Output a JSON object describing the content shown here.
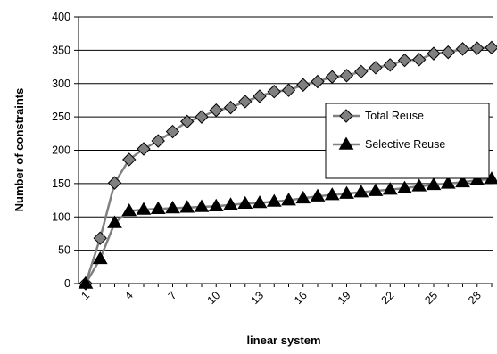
{
  "chart_data": {
    "type": "line",
    "title": "",
    "xlabel": "linear system",
    "ylabel": "Number of constraints",
    "x": [
      1,
      2,
      3,
      4,
      5,
      6,
      7,
      8,
      9,
      10,
      11,
      12,
      13,
      14,
      15,
      16,
      17,
      18,
      19,
      20,
      21,
      22,
      23,
      24,
      25,
      26,
      27,
      28,
      29
    ],
    "xtick_labels": [
      "1",
      "4",
      "7",
      "10",
      "13",
      "16",
      "19",
      "22",
      "25",
      "28"
    ],
    "ylim": [
      0,
      400
    ],
    "ytick_labels": [
      "0",
      "50",
      "100",
      "150",
      "200",
      "250",
      "300",
      "350",
      "400"
    ],
    "grid": "horizontal",
    "legend_position": "right",
    "series": [
      {
        "name": "Total Reuse",
        "marker": "diamond",
        "color": "#808080",
        "values": [
          0,
          68,
          151,
          186,
          202,
          214,
          228,
          243,
          250,
          260,
          264,
          273,
          281,
          288,
          290,
          298,
          303,
          310,
          312,
          318,
          324,
          328,
          335,
          336,
          345,
          347,
          352,
          353,
          354
        ]
      },
      {
        "name": "Selective Reuse",
        "marker": "triangle",
        "color": "#808080",
        "values": [
          0,
          37,
          91,
          109,
          111,
          112,
          113,
          114,
          115,
          116,
          118,
          120,
          121,
          123,
          125,
          128,
          131,
          133,
          135,
          137,
          139,
          141,
          143,
          146,
          148,
          150,
          152,
          155,
          157
        ]
      }
    ]
  }
}
